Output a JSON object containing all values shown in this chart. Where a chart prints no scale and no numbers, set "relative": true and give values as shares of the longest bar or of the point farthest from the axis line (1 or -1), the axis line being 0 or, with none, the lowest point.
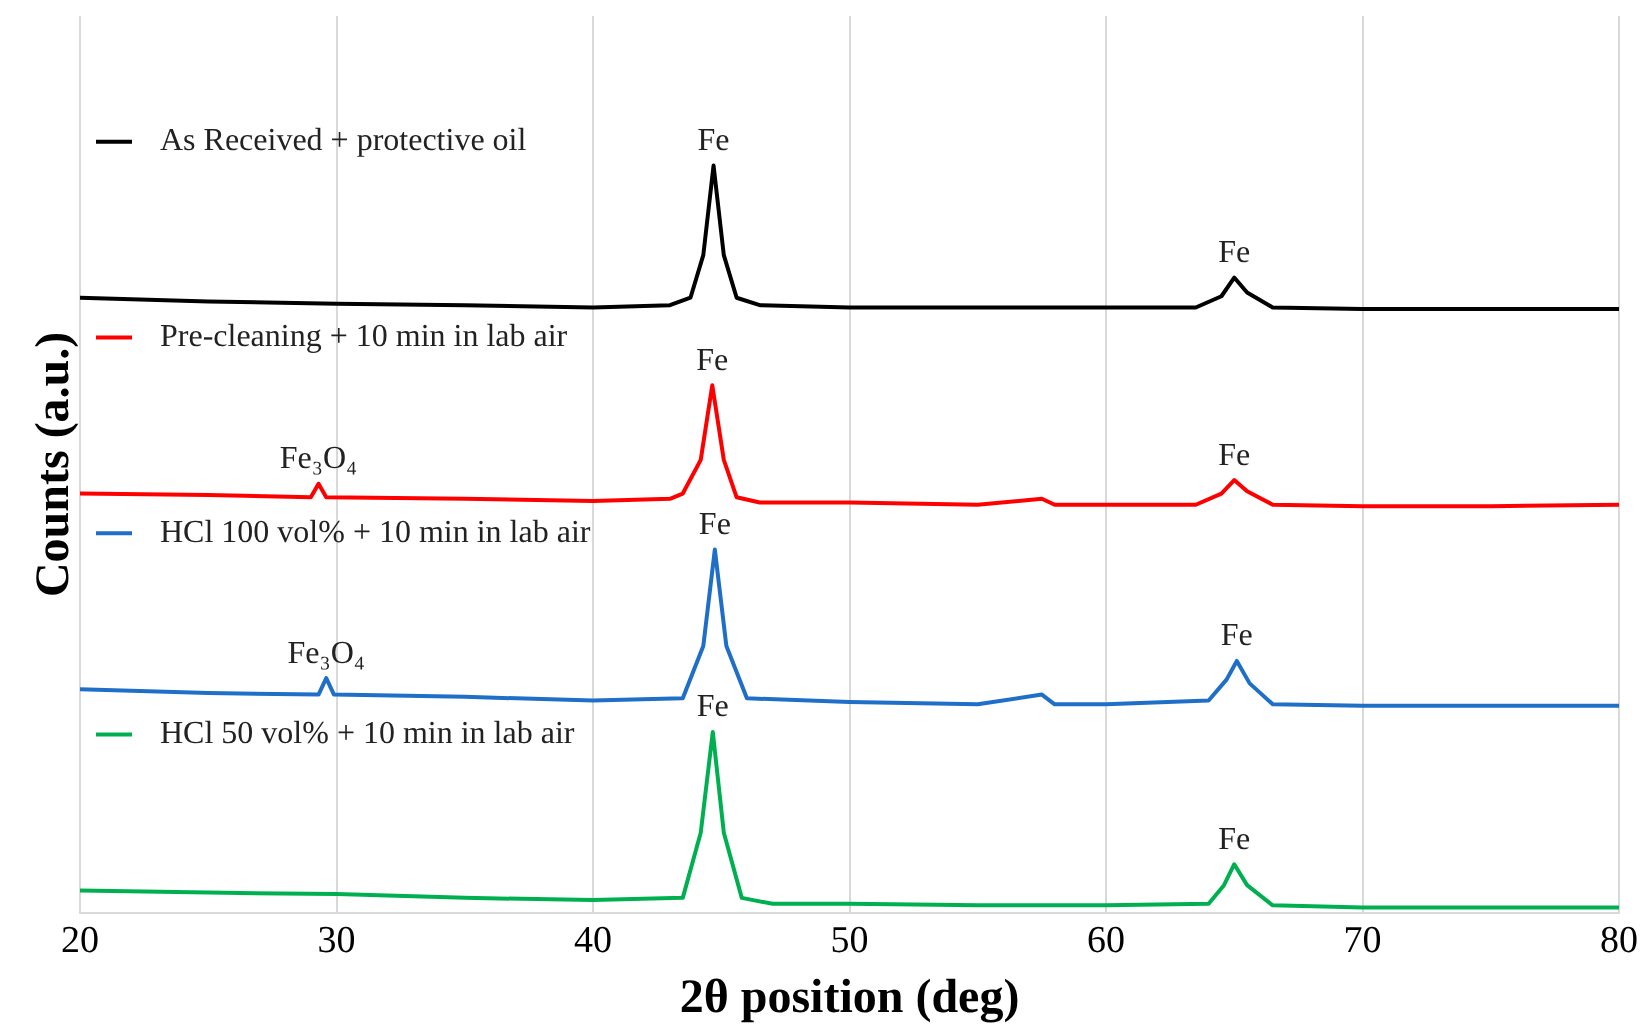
{
  "chart_data": {
    "type": "line",
    "relative": true,
    "xlabel": "2θ position (deg)",
    "ylabel": "Counts (a.u.)",
    "xlim": [
      20,
      80
    ],
    "xticks": [
      20,
      30,
      40,
      50,
      60,
      70,
      80
    ],
    "grid": "x",
    "legend": "left",
    "marker": "none",
    "line_style": "solid",
    "series": [
      {
        "name": "As Received + protective oil",
        "color": "#000000",
        "x": [
          20,
          25,
          30,
          35,
          40,
          43,
          43.8,
          44.3,
          44.7,
          45.1,
          45.6,
          46.5,
          50,
          55,
          60,
          63.5,
          64.5,
          65,
          65.5,
          66.5,
          70,
          75,
          80
        ],
        "values": [
          0.823,
          0.818,
          0.815,
          0.813,
          0.81,
          0.813,
          0.823,
          0.88,
          1,
          0.88,
          0.823,
          0.813,
          0.81,
          0.81,
          0.81,
          0.81,
          0.825,
          0.85,
          0.83,
          0.81,
          0.808,
          0.808,
          0.808
        ]
      },
      {
        "name": "Pre-cleaning + 10 min in lab air",
        "color": "#ff0000",
        "x": [
          20,
          25,
          29,
          29.3,
          29.6,
          35,
          40,
          43,
          43.5,
          44.2,
          44.65,
          45.1,
          45.6,
          46.5,
          50,
          55,
          57.5,
          58,
          60,
          63.5,
          64.5,
          65,
          65.5,
          66.5,
          70,
          75,
          80
        ],
        "values": [
          0.561,
          0.559,
          0.556,
          0.574,
          0.556,
          0.554,
          0.551,
          0.554,
          0.561,
          0.606,
          0.706,
          0.606,
          0.556,
          0.549,
          0.549,
          0.546,
          0.554,
          0.546,
          0.546,
          0.546,
          0.561,
          0.579,
          0.564,
          0.546,
          0.544,
          0.544,
          0.546
        ]
      },
      {
        "name": "HCl 100 vol% + 10 min in lab air",
        "color": "#1f6fc8",
        "x": [
          20,
          25,
          29.3,
          29.6,
          29.9,
          35,
          40,
          43.5,
          44.3,
          44.75,
          45.2,
          46,
          50,
          55,
          57.5,
          58,
          60,
          64,
          64.7,
          65.1,
          65.6,
          66.5,
          70,
          75,
          80
        ],
        "values": [
          0.299,
          0.294,
          0.292,
          0.314,
          0.292,
          0.289,
          0.284,
          0.287,
          0.357,
          0.486,
          0.357,
          0.287,
          0.282,
          0.279,
          0.292,
          0.279,
          0.279,
          0.284,
          0.312,
          0.337,
          0.307,
          0.279,
          0.277,
          0.277,
          0.277
        ]
      },
      {
        "name": "HCl 50 vol% + 10 min in lab air",
        "color": "#00b050",
        "x": [
          20,
          25,
          30,
          35,
          40,
          43.5,
          44.2,
          44.67,
          45.1,
          45.8,
          47,
          50,
          55,
          60,
          64,
          64.6,
          65,
          65.5,
          66.5,
          70,
          75,
          80
        ],
        "values": [
          0.03,
          0.027,
          0.025,
          0.02,
          0.017,
          0.02,
          0.107,
          0.242,
          0.107,
          0.02,
          0.012,
          0.012,
          0.01,
          0.01,
          0.012,
          0.037,
          0.065,
          0.037,
          0.01,
          0.007,
          0.007,
          0.007
        ]
      }
    ],
    "annotations": [
      {
        "text": "Fe",
        "x": 44.7,
        "y": 1
      },
      {
        "text": "Fe",
        "x": 65,
        "y": 0.85
      },
      {
        "text": "Fe₃O₄",
        "x": 29.3,
        "y": 0.574
      },
      {
        "text": "Fe",
        "x": 44.65,
        "y": 0.706
      },
      {
        "text": "Fe",
        "x": 65,
        "y": 0.579
      },
      {
        "text": "Fe₃O₄",
        "x": 29.6,
        "y": 0.314
      },
      {
        "text": "Fe",
        "x": 44.75,
        "y": 0.486
      },
      {
        "text": "Fe",
        "x": 65.1,
        "y": 0.337
      },
      {
        "text": "Fe",
        "x": 44.67,
        "y": 0.242
      },
      {
        "text": "Fe",
        "x": 65,
        "y": 0.065
      }
    ]
  }
}
